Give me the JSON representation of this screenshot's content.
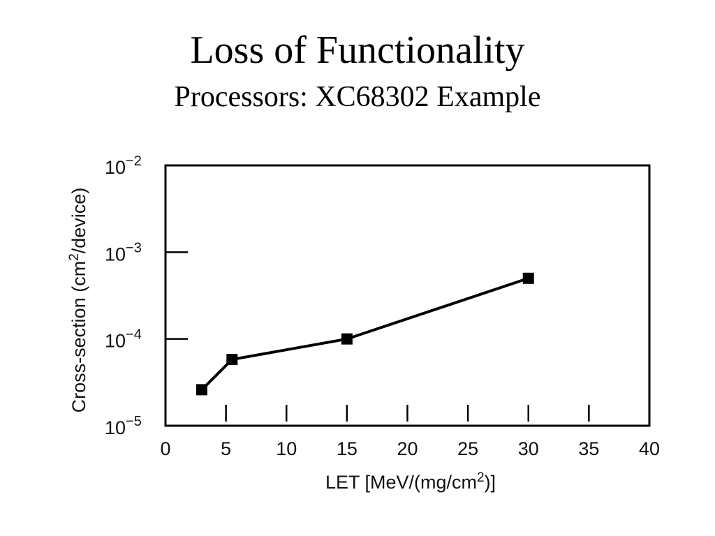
{
  "slide": {
    "title": "Loss of Functionality",
    "subtitle": "Processors: XC68302 Example"
  },
  "chart_data": {
    "type": "line",
    "title": "",
    "xlabel": "LET [MeV/(mg/cm",
    "xlabel_sup": "2",
    "xlabel_end": ")]",
    "ylabel": "Cross-section (cm",
    "ylabel_sup": "2",
    "ylabel_end": "/device)",
    "xlim": [
      0,
      40
    ],
    "ylim": [
      1e-05,
      0.01
    ],
    "yscale": "log",
    "x_ticks": [
      "0",
      "5",
      "10",
      "15",
      "20",
      "25",
      "30",
      "35",
      "40"
    ],
    "y_ticks": [
      {
        "base": "10",
        "exp": "−2",
        "value": 0.01
      },
      {
        "base": "10",
        "exp": "−3",
        "value": 0.001
      },
      {
        "base": "10",
        "exp": "−4",
        "value": 0.0001
      },
      {
        "base": "10",
        "exp": "−5",
        "value": 1e-05
      }
    ],
    "series": [
      {
        "name": "XC68302",
        "x": [
          3,
          5.5,
          15,
          30
        ],
        "y": [
          2.6e-05,
          5.8e-05,
          0.0001,
          0.0005
        ]
      }
    ],
    "grid": false,
    "legend": "none"
  }
}
